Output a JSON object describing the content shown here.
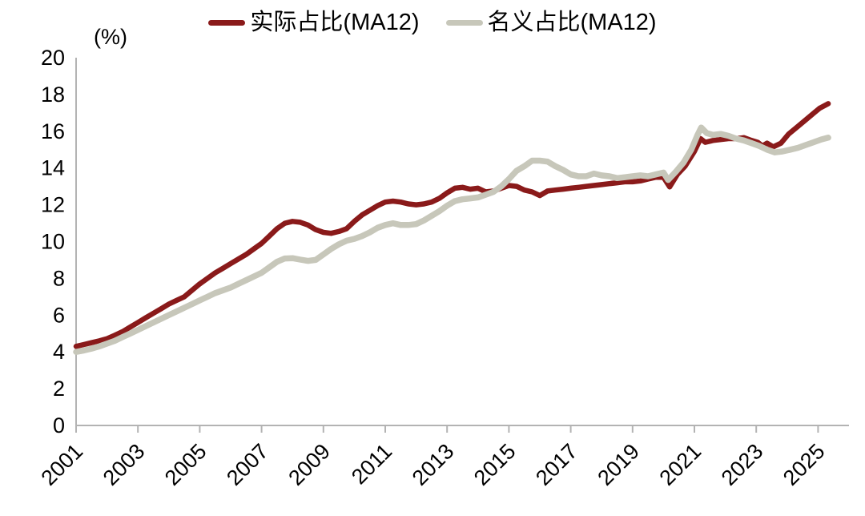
{
  "chart_data": {
    "type": "line",
    "title": "",
    "unit_label": "(%)",
    "axis_color": "#b3b3b3",
    "text_color": "#000000",
    "grid": false,
    "legend_position": "top-center",
    "ylim": [
      0,
      20
    ],
    "yticks": [
      0,
      2,
      4,
      6,
      8,
      10,
      12,
      14,
      16,
      18,
      20
    ],
    "xticks": [
      2001,
      2003,
      2005,
      2007,
      2009,
      2011,
      2013,
      2015,
      2017,
      2019,
      2021,
      2023,
      2025
    ],
    "series": [
      {
        "key": "actual-share",
        "name": "实际占比(MA12)",
        "color": "#8a1a1a",
        "x": [
          2001,
          2001.25,
          2001.5,
          2001.75,
          2002,
          2002.25,
          2002.5,
          2002.75,
          2003,
          2003.25,
          2003.5,
          2003.75,
          2004,
          2004.25,
          2004.5,
          2004.75,
          2005,
          2005.25,
          2005.5,
          2005.75,
          2006,
          2006.25,
          2006.5,
          2006.75,
          2007,
          2007.25,
          2007.5,
          2007.75,
          2008,
          2008.25,
          2008.5,
          2008.75,
          2009,
          2009.25,
          2009.5,
          2009.75,
          2010,
          2010.25,
          2010.5,
          2010.75,
          2011,
          2011.25,
          2011.5,
          2011.75,
          2012,
          2012.25,
          2012.5,
          2012.75,
          2013,
          2013.25,
          2013.5,
          2013.75,
          2014,
          2014.25,
          2014.5,
          2014.75,
          2015,
          2015.25,
          2015.5,
          2015.75,
          2016,
          2016.25,
          2016.5,
          2016.75,
          2017,
          2017.25,
          2017.5,
          2017.75,
          2018,
          2018.25,
          2018.5,
          2018.75,
          2019,
          2019.25,
          2019.5,
          2019.75,
          2020,
          2020.2,
          2020.45,
          2020.7,
          2021,
          2021.2,
          2021.35,
          2021.6,
          2021.85,
          2022.1,
          2022.35,
          2022.6,
          2022.85,
          2023.05,
          2023.2,
          2023.35,
          2023.55,
          2023.8,
          2024.05,
          2024.3,
          2024.55,
          2024.8,
          2025.05,
          2025.33
        ],
        "y": [
          4.3,
          4.4,
          4.5,
          4.6,
          4.72,
          4.9,
          5.1,
          5.35,
          5.6,
          5.85,
          6.1,
          6.35,
          6.6,
          6.8,
          7.0,
          7.35,
          7.7,
          8.0,
          8.3,
          8.55,
          8.8,
          9.05,
          9.3,
          9.6,
          9.9,
          10.3,
          10.7,
          11.0,
          11.1,
          11.05,
          10.9,
          10.65,
          10.5,
          10.45,
          10.55,
          10.7,
          11.1,
          11.45,
          11.7,
          11.95,
          12.15,
          12.2,
          12.15,
          12.05,
          12.0,
          12.05,
          12.15,
          12.35,
          12.65,
          12.9,
          12.95,
          12.85,
          12.9,
          12.7,
          12.75,
          12.9,
          13.05,
          13.0,
          12.8,
          12.7,
          12.5,
          12.75,
          12.8,
          12.85,
          12.9,
          12.95,
          13.0,
          13.05,
          13.1,
          13.15,
          13.2,
          13.25,
          13.25,
          13.3,
          13.4,
          13.5,
          13.5,
          12.97,
          13.65,
          14.1,
          14.9,
          15.6,
          15.4,
          15.5,
          15.55,
          15.6,
          15.6,
          15.65,
          15.5,
          15.4,
          15.2,
          15.35,
          15.15,
          15.35,
          15.85,
          16.2,
          16.55,
          16.9,
          17.25,
          17.5
        ]
      },
      {
        "key": "nominal-share",
        "name": "名义占比(MA12)",
        "color": "#c7c7ba",
        "x": [
          2001,
          2001.25,
          2001.5,
          2001.75,
          2002,
          2002.25,
          2002.5,
          2002.75,
          2003,
          2003.25,
          2003.5,
          2003.75,
          2004,
          2004.25,
          2004.5,
          2004.75,
          2005,
          2005.25,
          2005.5,
          2005.75,
          2006,
          2006.25,
          2006.5,
          2006.75,
          2007,
          2007.25,
          2007.5,
          2007.75,
          2008,
          2008.25,
          2008.5,
          2008.75,
          2009,
          2009.25,
          2009.5,
          2009.75,
          2010,
          2010.25,
          2010.5,
          2010.75,
          2011,
          2011.25,
          2011.5,
          2011.75,
          2012,
          2012.25,
          2012.5,
          2012.75,
          2013,
          2013.25,
          2013.5,
          2013.75,
          2014,
          2014.25,
          2014.5,
          2014.75,
          2015,
          2015.25,
          2015.5,
          2015.75,
          2016,
          2016.25,
          2016.5,
          2016.75,
          2017,
          2017.25,
          2017.5,
          2017.75,
          2018,
          2018.25,
          2018.5,
          2018.75,
          2019,
          2019.25,
          2019.5,
          2019.75,
          2020,
          2020.15,
          2020.4,
          2020.65,
          2020.9,
          2021.1,
          2021.22,
          2021.4,
          2021.6,
          2021.85,
          2022.1,
          2022.35,
          2022.6,
          2022.85,
          2023.1,
          2023.35,
          2023.6,
          2023.85,
          2024.1,
          2024.35,
          2024.6,
          2024.85,
          2025.1,
          2025.33
        ],
        "y": [
          4.0,
          4.08,
          4.18,
          4.3,
          4.45,
          4.6,
          4.8,
          5.0,
          5.2,
          5.4,
          5.6,
          5.8,
          6.0,
          6.2,
          6.4,
          6.6,
          6.8,
          7.0,
          7.2,
          7.35,
          7.5,
          7.7,
          7.9,
          8.1,
          8.3,
          8.6,
          8.9,
          9.08,
          9.1,
          9.02,
          8.95,
          9.0,
          9.3,
          9.6,
          9.85,
          10.05,
          10.15,
          10.3,
          10.5,
          10.75,
          10.9,
          11.0,
          10.9,
          10.9,
          10.95,
          11.15,
          11.4,
          11.65,
          11.95,
          12.2,
          12.3,
          12.35,
          12.4,
          12.55,
          12.7,
          13.0,
          13.4,
          13.85,
          14.1,
          14.4,
          14.4,
          14.35,
          14.1,
          13.9,
          13.65,
          13.55,
          13.55,
          13.7,
          13.6,
          13.55,
          13.45,
          13.5,
          13.55,
          13.6,
          13.55,
          13.65,
          13.75,
          13.35,
          13.8,
          14.3,
          15.0,
          15.8,
          16.2,
          15.9,
          15.8,
          15.85,
          15.75,
          15.6,
          15.5,
          15.35,
          15.2,
          15.0,
          14.85,
          14.9,
          15.0,
          15.1,
          15.25,
          15.4,
          15.55,
          15.65
        ]
      }
    ]
  }
}
